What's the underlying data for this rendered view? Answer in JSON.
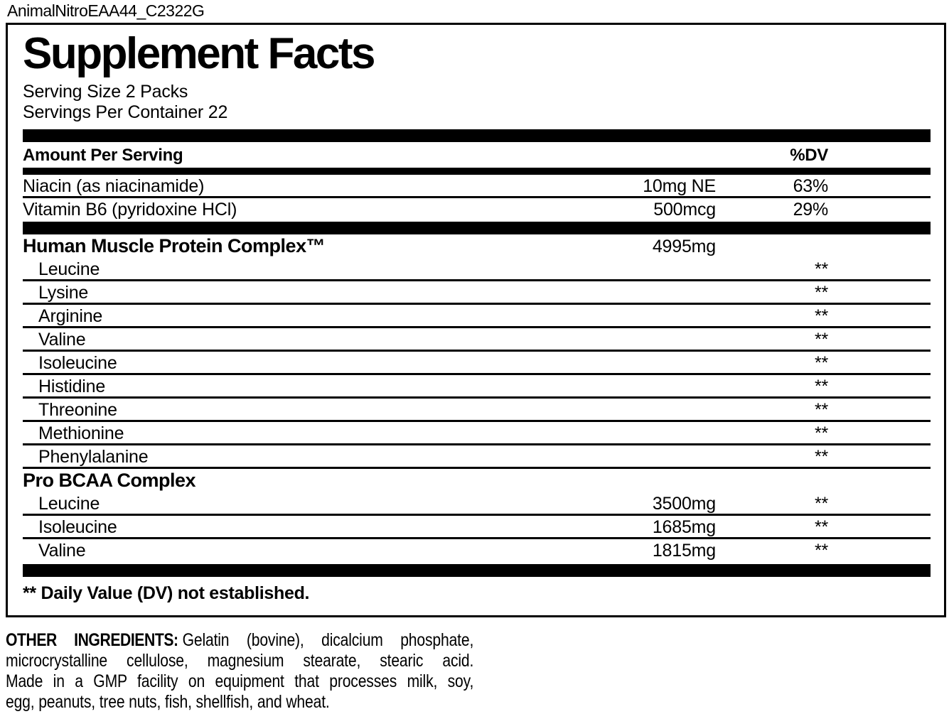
{
  "page_title": "AnimalNitroEAA44_C2322G",
  "panel": {
    "title": "Supplement Facts",
    "serving_size": "Serving Size 2 Packs",
    "servings_per_container": "Servings Per Container 22",
    "header": {
      "amount_label": "Amount Per Serving",
      "dv_label": "%DV"
    },
    "rows": [
      {
        "type": "item",
        "name": "Niacin (as niacinamide)",
        "amount": "10mg NE",
        "dv": "63%",
        "line": true
      },
      {
        "type": "item",
        "name": "Vitamin B6 (pyridoxine HCl)",
        "amount": "500mcg",
        "dv": "29%",
        "line": false
      },
      {
        "type": "bar"
      },
      {
        "type": "section",
        "name": "Human Muscle Protein Complex™",
        "amount": "4995mg",
        "dv": "",
        "line": false
      },
      {
        "type": "sub",
        "name": "Leucine",
        "amount": "",
        "dv": "**",
        "line": true
      },
      {
        "type": "sub",
        "name": "Lysine",
        "amount": "",
        "dv": "**",
        "line": true
      },
      {
        "type": "sub",
        "name": "Arginine",
        "amount": "",
        "dv": "**",
        "line": true
      },
      {
        "type": "sub",
        "name": "Valine",
        "amount": "",
        "dv": "**",
        "line": true
      },
      {
        "type": "sub",
        "name": "Isoleucine",
        "amount": "",
        "dv": "**",
        "line": true
      },
      {
        "type": "sub",
        "name": "Histidine",
        "amount": "",
        "dv": "**",
        "line": true
      },
      {
        "type": "sub",
        "name": "Threonine",
        "amount": "",
        "dv": "**",
        "line": true
      },
      {
        "type": "sub",
        "name": "Methionine",
        "amount": "",
        "dv": "**",
        "line": true
      },
      {
        "type": "sub",
        "name": "Phenylalanine",
        "amount": "",
        "dv": "**",
        "line": true
      },
      {
        "type": "section",
        "name": "Pro BCAA Complex",
        "amount": "",
        "dv": "",
        "line": false
      },
      {
        "type": "sub",
        "name": "Leucine",
        "amount": "3500mg",
        "dv": "**",
        "line": true
      },
      {
        "type": "sub",
        "name": "Isoleucine",
        "amount": "1685mg",
        "dv": "**",
        "line": true
      },
      {
        "type": "sub",
        "name": "Valine",
        "amount": "1815mg",
        "dv": "**",
        "line": false
      }
    ],
    "footnote": "** Daily Value (DV) not established."
  },
  "other_ingredients": {
    "label": "OTHER INGREDIENTS:",
    "line1_rest": "Gelatin (bovine), dicalcium phosphate,",
    "line2": "microcrystalline cellulose, magnesium stearate, stearic acid.",
    "line3": "Made in a GMP facility on equipment that processes milk, soy,",
    "line4": "egg, peanuts, tree nuts, fish, shellfish, and wheat."
  },
  "colors": {
    "text": "#000000",
    "background": "#ffffff",
    "bar": "#000000"
  }
}
